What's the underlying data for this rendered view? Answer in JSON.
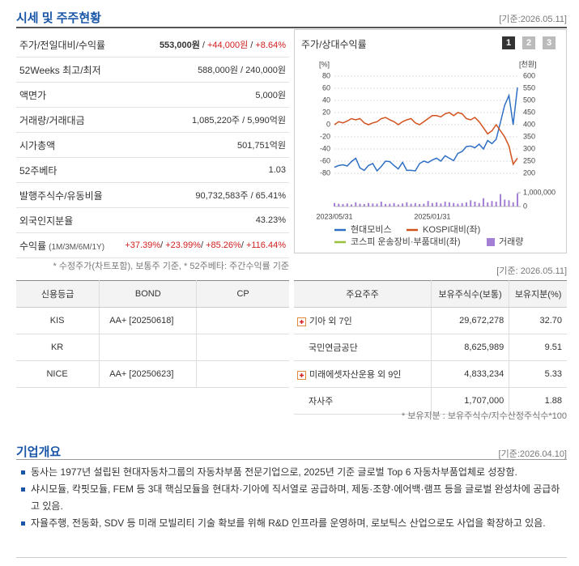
{
  "header": {
    "title": "시세 및 주주현황",
    "date": "[기준:2026.05.11]"
  },
  "price_table": {
    "rows": [
      {
        "label": "주가/전일대비/수익률",
        "value": [
          "553,000원",
          " / ",
          "+44,000원",
          " / ",
          "+8.64%"
        ]
      },
      {
        "label": "52Weeks 최고/최저",
        "value": [
          "588,000원 / 240,000원"
        ]
      },
      {
        "label": "액면가",
        "value": [
          "5,000원"
        ]
      },
      {
        "label": "거래량/거래대금",
        "value": [
          "1,085,220주 / 5,990억원"
        ]
      },
      {
        "label": "시가총액",
        "value": [
          "501,751억원"
        ]
      },
      {
        "label": "52주베타",
        "value": [
          "1.03"
        ]
      },
      {
        "label": "발행주식수/유동비율",
        "value": [
          "90,732,583주 / 65.41%"
        ]
      },
      {
        "label": "외국인지분율",
        "value": [
          "43.23%"
        ]
      },
      {
        "label": "수익률",
        "sublabel": "(1M/3M/6M/1Y)",
        "value": [
          "+37.39%",
          "/ ",
          "+23.99%",
          "/ ",
          "+85.26%",
          "/ ",
          "+116.44%"
        ]
      }
    ],
    "note": "* 수정주가(차트포함), 보통주 기준, * 52주베타: 주간수익률 기준"
  },
  "chart_data": {
    "type": "line",
    "title": "주가/상대수익률",
    "buttons": [
      "1",
      "2",
      "3"
    ],
    "active_button": 0,
    "date": "[기준: 2026.05.11]",
    "categories": [
      "2023/05/31",
      null,
      null,
      null,
      null,
      null,
      null,
      null,
      null,
      null,
      null,
      null,
      null,
      null,
      null,
      null,
      null,
      null,
      null,
      null,
      null,
      null,
      null,
      "2025/01/31",
      null,
      null,
      null,
      null,
      null,
      null,
      null,
      null,
      null,
      null,
      null,
      null,
      null,
      null,
      null,
      null,
      null,
      null,
      null,
      null
    ],
    "ylabel": "[%]",
    "y2label": "[천원]",
    "ylim": [
      -80,
      80
    ],
    "yticks": [
      80,
      60,
      40,
      20,
      0,
      -20,
      -40,
      -60,
      -80
    ],
    "y2lim": [
      200,
      600
    ],
    "y2ticks": [
      600,
      550,
      500,
      450,
      400,
      350,
      300,
      250,
      200
    ],
    "volume_lim": [
      0,
      1000000
    ],
    "volume_ticks": [
      {
        "value": 1000000,
        "label": "1,000,000"
      },
      0
    ],
    "grid": true,
    "series": [
      {
        "name": "현대모비스",
        "color": "#2f6fc4",
        "axis": "y2",
        "values": [
          225,
          232,
          235,
          230,
          248,
          262,
          222,
          212,
          232,
          240,
          210,
          228,
          250,
          248,
          232,
          218,
          245,
          212,
          212,
          210,
          240,
          250,
          244,
          255,
          262,
          250,
          272,
          262,
          252,
          282,
          290,
          310,
          312,
          305,
          320,
          300,
          335,
          322,
          340,
          410,
          480,
          520,
          400,
          553
        ]
      },
      {
        "name": "KOSPI대비(좌)",
        "color": "#d2521e",
        "values": [
          0,
          5,
          3,
          6,
          10,
          8,
          10,
          3,
          0,
          3,
          5,
          10,
          12,
          8,
          5,
          0,
          5,
          8,
          10,
          3,
          0,
          5,
          10,
          15,
          15,
          13,
          18,
          20,
          15,
          20,
          18,
          10,
          8,
          12,
          5,
          -5,
          -15,
          -10,
          0,
          -10,
          -20,
          -35,
          -65,
          -55
        ]
      },
      {
        "name": "코스피 운송장비·부품대비(좌)",
        "color": "#9bc13b"
      },
      {
        "name": "거래량",
        "color": "#a47fd6",
        "type": "bar",
        "values": [
          250000,
          200000,
          180000,
          220000,
          150000,
          300000,
          200000,
          180000,
          250000,
          220000,
          200000,
          350000,
          180000,
          200000,
          250000,
          150000,
          220000,
          300000,
          200000,
          250000,
          180000,
          200000,
          400000,
          250000,
          300000,
          220000,
          350000,
          300000,
          250000,
          200000,
          250000,
          300000,
          450000,
          350000,
          250000,
          600000,
          300000,
          400000,
          350000,
          900000,
          500000,
          450000,
          300000,
          950000
        ]
      }
    ]
  },
  "credit_table": {
    "headers": [
      "신용등급",
      "BOND",
      "CP"
    ],
    "rows": [
      [
        "KIS",
        "AA+ [20250618]",
        null
      ],
      [
        "KR",
        null,
        null
      ],
      [
        "NICE",
        "AA+ [20250623]",
        null
      ]
    ]
  },
  "shareholder_table": {
    "headers": [
      "주요주주",
      "보유주식수(보통)",
      "보유지분(%)"
    ],
    "rows": [
      {
        "name": "기아 외 7인",
        "shares": "29,672,278",
        "pct": "32.70",
        "expandable": true
      },
      {
        "name": "국민연금공단",
        "shares": "8,625,989",
        "pct": "9.51",
        "expandable": false
      },
      {
        "name": "미래에셋자산운용 외 9인",
        "shares": "4,833,234",
        "pct": "5.33",
        "expandable": true
      },
      {
        "name": "자사주",
        "shares": "1,707,000",
        "pct": "1.88",
        "expandable": false
      }
    ],
    "note": "* 보유지분 : 보유주식수/지수산정주식수*100"
  },
  "overview": {
    "title": "기업개요",
    "date": "[기준:2026.04.10]",
    "items": [
      "동사는 1977년 설립된 현대자동차그룹의 자동차부품 전문기업으로, 2025년 기준 글로벌 Top 6 자동차부품업체로 성장함.",
      "샤시모듈, 칵핏모듈, FEM 등 3대 핵심모듈을 현대차·기아에 직서열로 공급하며, 제동·조향·에어백·램프 등을 글로벌 완성차에 공급하고 있음.",
      "자율주행, 전동화, SDV 등 미래 모빌리티 기술 확보를 위해 R&D 인프라를 운영하며, 로보틱스 산업으로도 사업을 확장하고 있음."
    ]
  }
}
